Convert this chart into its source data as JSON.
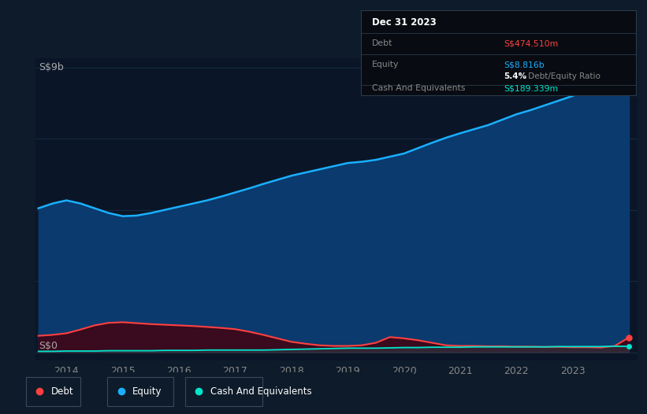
{
  "bg_color": "#0d1b2a",
  "plot_bg_color": "#0a1628",
  "title_label": "S$9b",
  "zero_label": "S$0",
  "ylabel_color": "#aaaaaa",
  "x_years": [
    2013.5,
    2013.75,
    2014.0,
    2014.25,
    2014.5,
    2014.75,
    2015.0,
    2015.25,
    2015.5,
    2015.75,
    2016.0,
    2016.25,
    2016.5,
    2016.75,
    2017.0,
    2017.25,
    2017.5,
    2017.75,
    2018.0,
    2018.25,
    2018.5,
    2018.75,
    2019.0,
    2019.25,
    2019.5,
    2019.75,
    2020.0,
    2020.25,
    2020.5,
    2020.75,
    2021.0,
    2021.25,
    2021.5,
    2021.75,
    2022.0,
    2022.25,
    2022.5,
    2022.75,
    2023.0,
    2023.25,
    2023.5,
    2023.75,
    2024.0
  ],
  "equity": [
    4.55,
    4.7,
    4.8,
    4.7,
    4.55,
    4.4,
    4.3,
    4.32,
    4.4,
    4.5,
    4.6,
    4.7,
    4.8,
    4.92,
    5.05,
    5.18,
    5.32,
    5.45,
    5.58,
    5.68,
    5.78,
    5.88,
    5.98,
    6.02,
    6.08,
    6.18,
    6.28,
    6.45,
    6.62,
    6.78,
    6.92,
    7.05,
    7.18,
    7.35,
    7.52,
    7.65,
    7.8,
    7.95,
    8.1,
    8.28,
    8.46,
    8.65,
    8.816
  ],
  "debt": [
    0.52,
    0.55,
    0.6,
    0.72,
    0.85,
    0.93,
    0.95,
    0.92,
    0.89,
    0.87,
    0.85,
    0.83,
    0.8,
    0.77,
    0.73,
    0.65,
    0.55,
    0.44,
    0.33,
    0.27,
    0.22,
    0.2,
    0.2,
    0.22,
    0.3,
    0.48,
    0.44,
    0.38,
    0.3,
    0.22,
    0.2,
    0.2,
    0.19,
    0.19,
    0.18,
    0.18,
    0.17,
    0.17,
    0.16,
    0.16,
    0.15,
    0.2,
    0.47
  ],
  "cash": [
    0.03,
    0.03,
    0.04,
    0.04,
    0.04,
    0.05,
    0.05,
    0.05,
    0.05,
    0.06,
    0.06,
    0.06,
    0.07,
    0.07,
    0.07,
    0.07,
    0.07,
    0.08,
    0.09,
    0.1,
    0.11,
    0.12,
    0.13,
    0.13,
    0.13,
    0.14,
    0.15,
    0.15,
    0.16,
    0.16,
    0.16,
    0.17,
    0.17,
    0.17,
    0.17,
    0.17,
    0.17,
    0.18,
    0.18,
    0.18,
    0.18,
    0.19,
    0.189
  ],
  "equity_color": "#1ab0ff",
  "debt_color": "#ff4040",
  "cash_color": "#00e5cc",
  "equity_fill": "#0a3a6e",
  "debt_fill": "#3a0a1e",
  "grid_color": "#1a2e45",
  "tick_color": "#888888",
  "tooltip_bg": "#080c12",
  "tooltip_border": "#2a3a4a",
  "tooltip_title": "Dec 31 2023",
  "tooltip_debt_label": "Debt",
  "tooltip_debt_value": "S$474.510m",
  "tooltip_equity_label": "Equity",
  "tooltip_equity_value": "S$8.816b",
  "tooltip_ratio_bold": "5.4%",
  "tooltip_ratio_rest": " Debt/Equity Ratio",
  "tooltip_cash_label": "Cash And Equivalents",
  "tooltip_cash_value": "S$189.339m",
  "legend_items": [
    {
      "label": "Debt",
      "color": "#ff4040"
    },
    {
      "label": "Equity",
      "color": "#1ab0ff"
    },
    {
      "label": "Cash And Equivalents",
      "color": "#00e5cc"
    }
  ],
  "ylim_max": 9.3,
  "ylim_min": -0.25,
  "xlim_min": 2013.45,
  "xlim_max": 2024.15,
  "xtick_years": [
    2014,
    2015,
    2016,
    2017,
    2018,
    2019,
    2020,
    2021,
    2022,
    2023
  ],
  "grid_yvals": [
    0.0,
    2.25,
    4.5,
    6.75,
    9.0
  ]
}
